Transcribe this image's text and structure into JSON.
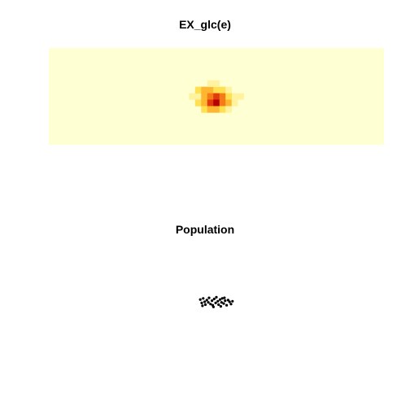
{
  "chart_data": [
    {
      "type": "heatmap",
      "title": "EX_glc(e)",
      "background_color": "#ffffd4",
      "colors": [
        "#ffffd4",
        "#fff3a0",
        "#fee050",
        "#fdb62f",
        "#f57a18",
        "#e03a0d",
        "#b30000"
      ],
      "grid_cols": 55,
      "grid_rows": 15,
      "cells": [
        {
          "col": 23,
          "row": 7,
          "level": 1
        },
        {
          "col": 24,
          "row": 7,
          "level": 1
        },
        {
          "col": 30,
          "row": 7,
          "level": 1
        },
        {
          "col": 31,
          "row": 7,
          "level": 1
        },
        {
          "col": 24,
          "row": 6,
          "level": 2
        },
        {
          "col": 25,
          "row": 6,
          "level": 3
        },
        {
          "col": 26,
          "row": 6,
          "level": 3
        },
        {
          "col": 27,
          "row": 6,
          "level": 2
        },
        {
          "col": 28,
          "row": 6,
          "level": 2
        },
        {
          "col": 29,
          "row": 6,
          "level": 1
        },
        {
          "col": 25,
          "row": 7,
          "level": 3
        },
        {
          "col": 26,
          "row": 7,
          "level": 4
        },
        {
          "col": 27,
          "row": 7,
          "level": 5
        },
        {
          "col": 28,
          "row": 7,
          "level": 4
        },
        {
          "col": 29,
          "row": 7,
          "level": 2
        },
        {
          "col": 24,
          "row": 8,
          "level": 2
        },
        {
          "col": 25,
          "row": 8,
          "level": 3
        },
        {
          "col": 26,
          "row": 8,
          "level": 5
        },
        {
          "col": 27,
          "row": 8,
          "level": 6
        },
        {
          "col": 28,
          "row": 8,
          "level": 4
        },
        {
          "col": 29,
          "row": 8,
          "level": 3
        },
        {
          "col": 30,
          "row": 8,
          "level": 1
        },
        {
          "col": 25,
          "row": 9,
          "level": 2
        },
        {
          "col": 26,
          "row": 9,
          "level": 3
        },
        {
          "col": 27,
          "row": 9,
          "level": 3
        },
        {
          "col": 28,
          "row": 9,
          "level": 2
        },
        {
          "col": 29,
          "row": 9,
          "level": 1
        },
        {
          "col": 26,
          "row": 5,
          "level": 1
        },
        {
          "col": 27,
          "row": 5,
          "level": 1
        }
      ]
    },
    {
      "type": "scatter",
      "title": "Population",
      "point_color": "#000000",
      "points": [
        [
          -2.2,
          0.4
        ],
        [
          -2.0,
          -0.2
        ],
        [
          -1.8,
          0.6
        ],
        [
          -1.6,
          0.0
        ],
        [
          -1.5,
          -0.5
        ],
        [
          -1.3,
          0.3
        ],
        [
          -1.1,
          -0.1
        ],
        [
          -1.0,
          0.7
        ],
        [
          -0.8,
          -0.4
        ],
        [
          -0.6,
          0.2
        ],
        [
          -0.5,
          -0.6
        ],
        [
          -0.3,
          0.5
        ],
        [
          -0.1,
          -0.2
        ],
        [
          0.0,
          0.8
        ],
        [
          0.2,
          0.1
        ],
        [
          0.3,
          -0.5
        ],
        [
          0.5,
          0.4
        ],
        [
          0.7,
          -0.1
        ],
        [
          0.8,
          0.6
        ],
        [
          1.0,
          -0.3
        ],
        [
          1.2,
          0.2
        ],
        [
          1.4,
          -0.6
        ],
        [
          1.6,
          0.3
        ],
        [
          1.8,
          0.0
        ],
        [
          2.0,
          -0.4
        ],
        [
          2.2,
          0.1
        ],
        [
          -1.9,
          -0.7
        ],
        [
          0.6,
          -0.8
        ],
        [
          1.1,
          0.7
        ],
        [
          -0.4,
          -0.9
        ]
      ]
    }
  ]
}
